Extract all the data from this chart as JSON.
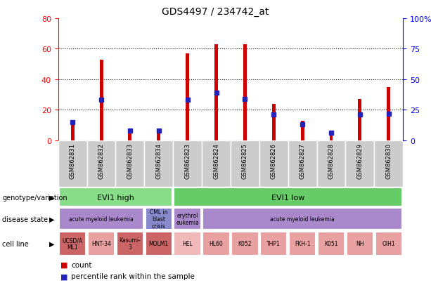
{
  "title": "GDS4497 / 234742_at",
  "samples": [
    "GSM862831",
    "GSM862832",
    "GSM862833",
    "GSM862834",
    "GSM862823",
    "GSM862824",
    "GSM862825",
    "GSM862826",
    "GSM862827",
    "GSM862828",
    "GSM862829",
    "GSM862830"
  ],
  "count_values": [
    10,
    53,
    6,
    6,
    57,
    63,
    63,
    24,
    13,
    4,
    27,
    35
  ],
  "percentile_values": [
    15,
    33,
    8,
    8,
    33,
    39,
    34,
    21,
    13,
    6,
    21,
    22
  ],
  "ylim_left": [
    0,
    80
  ],
  "ylim_right": [
    0,
    100
  ],
  "yticks_left": [
    0,
    20,
    40,
    60,
    80
  ],
  "yticks_right": [
    0,
    25,
    50,
    75,
    100
  ],
  "bar_color": "#cc0000",
  "percentile_color": "#2222bb",
  "plot_bg": "#ffffff",
  "tick_area_bg": "#cccccc",
  "genotype_groups": [
    {
      "label": "EVI1 high",
      "start": 0,
      "end": 4,
      "color": "#88dd88"
    },
    {
      "label": "EVI1 low",
      "start": 4,
      "end": 12,
      "color": "#66cc66"
    }
  ],
  "disease_groups": [
    {
      "label": "acute myeloid leukemia",
      "start": 0,
      "end": 3,
      "color": "#aa88cc"
    },
    {
      "label": "CML in\nblast\ncrisis",
      "start": 3,
      "end": 4,
      "color": "#8888cc"
    },
    {
      "label": "erythrol\neukemia",
      "start": 4,
      "end": 5,
      "color": "#aa88cc"
    },
    {
      "label": "acute myeloid leukemia",
      "start": 5,
      "end": 12,
      "color": "#aa88cc"
    }
  ],
  "cell_lines": [
    {
      "label": "UCSD/A\nML1",
      "start": 0,
      "end": 1,
      "color": "#cc6666"
    },
    {
      "label": "HNT-34",
      "start": 1,
      "end": 2,
      "color": "#e8a0a0"
    },
    {
      "label": "Kasumi-\n3",
      "start": 2,
      "end": 3,
      "color": "#cc6666"
    },
    {
      "label": "MOLM1",
      "start": 3,
      "end": 4,
      "color": "#cc6666"
    },
    {
      "label": "HEL",
      "start": 4,
      "end": 5,
      "color": "#f0b8b8"
    },
    {
      "label": "HL60",
      "start": 5,
      "end": 6,
      "color": "#e8a0a0"
    },
    {
      "label": "K052",
      "start": 6,
      "end": 7,
      "color": "#e8a0a0"
    },
    {
      "label": "THP1",
      "start": 7,
      "end": 8,
      "color": "#e8a0a0"
    },
    {
      "label": "FKH-1",
      "start": 8,
      "end": 9,
      "color": "#e8a0a0"
    },
    {
      "label": "K051",
      "start": 9,
      "end": 10,
      "color": "#e8a0a0"
    },
    {
      "label": "NH",
      "start": 10,
      "end": 11,
      "color": "#e8a0a0"
    },
    {
      "label": "OIH1",
      "start": 11,
      "end": 12,
      "color": "#e8a0a0"
    }
  ],
  "row_labels": [
    "genotype/variation",
    "disease state",
    "cell line"
  ],
  "legend_count": "count",
  "legend_percentile": "percentile rank within the sample"
}
